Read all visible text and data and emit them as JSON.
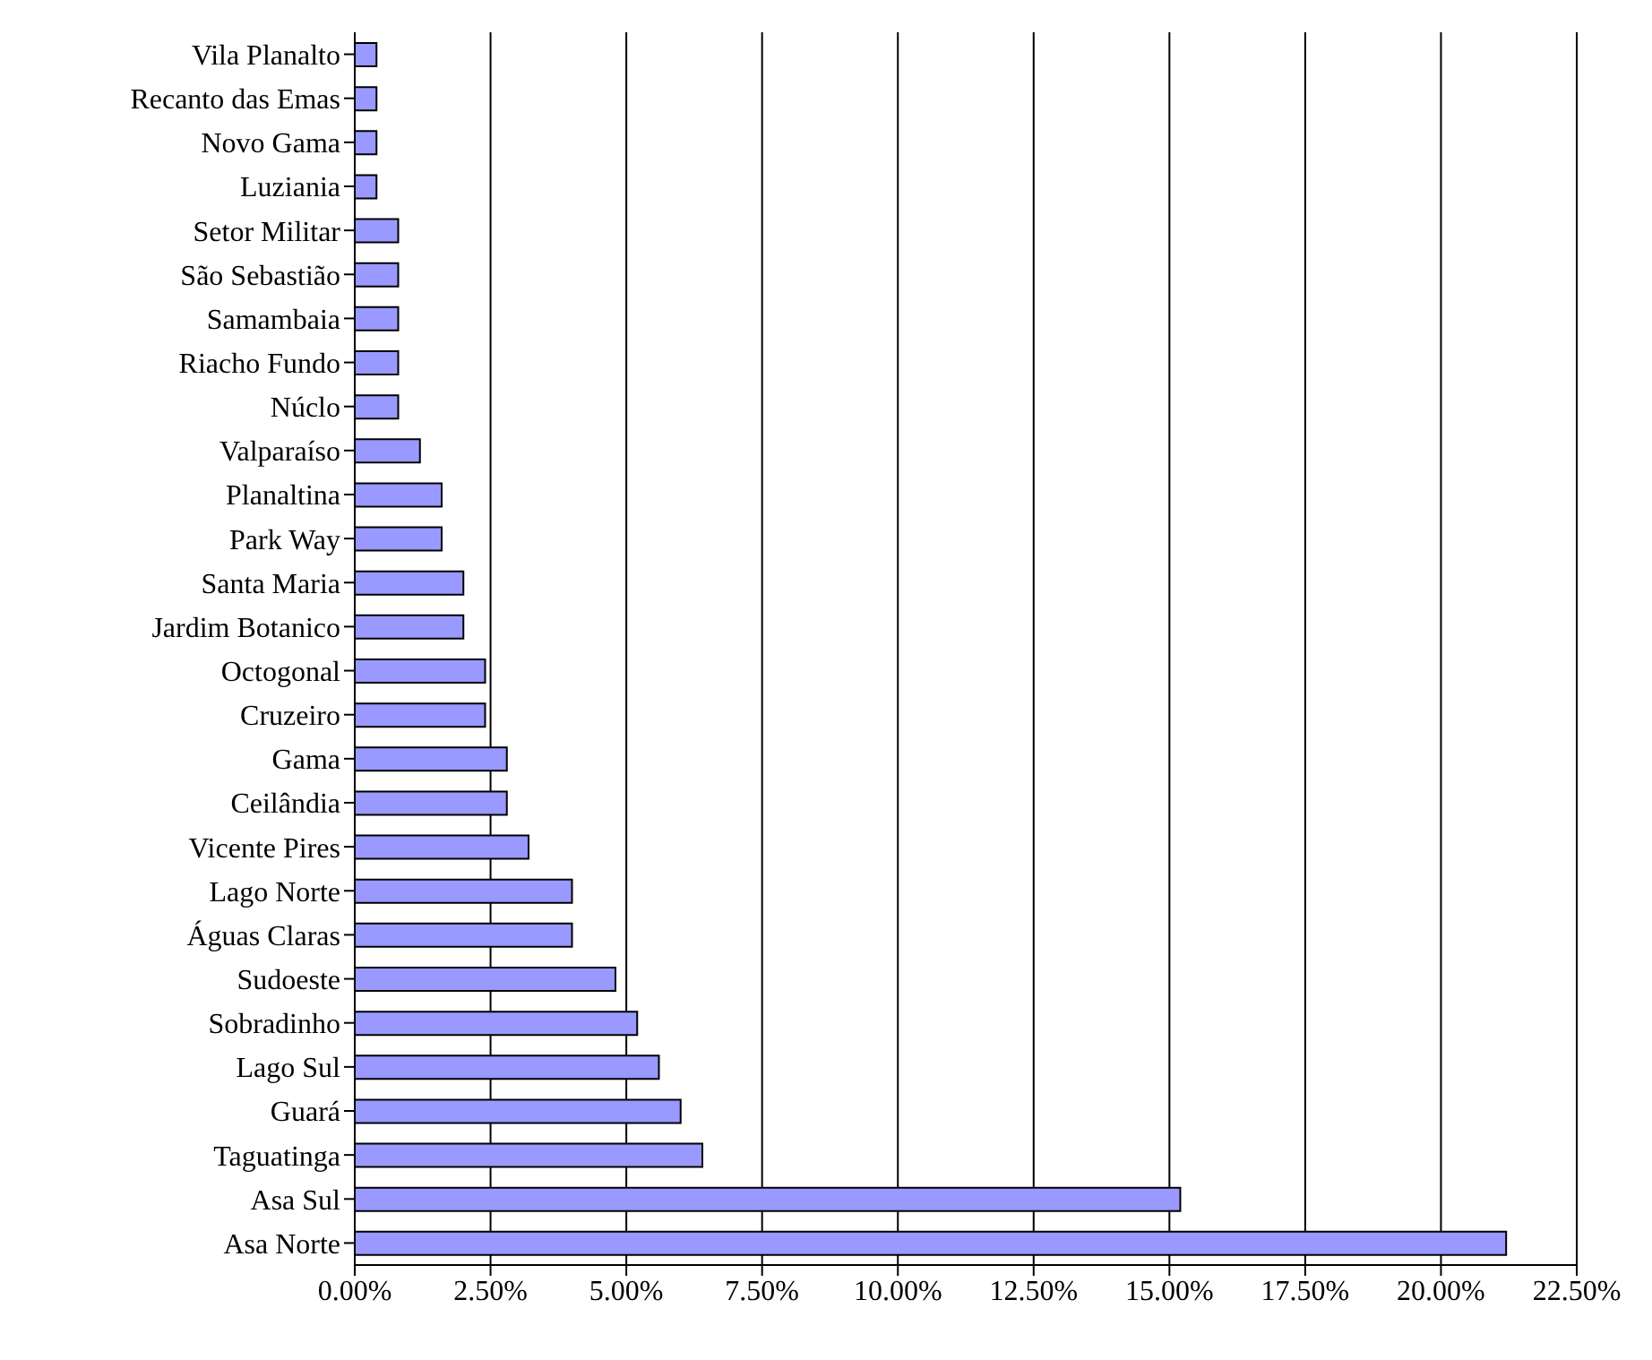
{
  "chart_data": {
    "type": "bar",
    "orientation": "horizontal",
    "categories": [
      "Vila Planalto",
      "Recanto das Emas",
      "Novo Gama",
      "Luziania",
      "Setor Militar",
      "São Sebastião",
      "Samambaia",
      "Riacho Fundo",
      "Núclo",
      "Valparaíso",
      "Planaltina",
      "Park Way",
      "Santa Maria",
      "Jardim Botanico",
      "Octogonal",
      "Cruzeiro",
      "Gama",
      "Ceilândia",
      "Vicente Pires",
      "Lago Norte",
      "Águas Claras",
      "Sudoeste",
      "Sobradinho",
      "Lago Sul",
      "Guará",
      "Taguatinga",
      "Asa Sul",
      "Asa Norte"
    ],
    "values": [
      0.4,
      0.4,
      0.4,
      0.4,
      0.8,
      0.8,
      0.8,
      0.8,
      0.8,
      1.2,
      1.6,
      1.6,
      2.0,
      2.0,
      2.4,
      2.4,
      2.8,
      2.8,
      3.2,
      4.0,
      4.0,
      4.8,
      5.2,
      5.6,
      6.0,
      6.4,
      15.2,
      21.2
    ],
    "color": "#9999ff",
    "xlim": [
      0,
      22.5
    ],
    "xticks": [
      {
        "value": 0,
        "label": "0.00%"
      },
      {
        "value": 2.5,
        "label": "2.50%"
      },
      {
        "value": 5,
        "label": "5.00%"
      },
      {
        "value": 7.5,
        "label": "7.50%"
      },
      {
        "value": 10,
        "label": "10.00%"
      },
      {
        "value": 12.5,
        "label": "12.50%"
      },
      {
        "value": 15,
        "label": "15.00%"
      },
      {
        "value": 17.5,
        "label": "17.50%"
      },
      {
        "value": 20,
        "label": "20.00%"
      },
      {
        "value": 22.5,
        "label": "22.50%"
      }
    ],
    "grid": "x",
    "legend": false
  }
}
